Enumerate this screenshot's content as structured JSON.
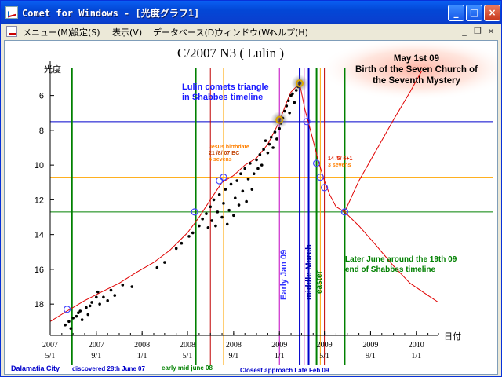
{
  "window": {
    "title": "Comet for Windows - [光度グラフ1]",
    "controls": {
      "minimize": "_",
      "maximize": "□",
      "close": "×"
    }
  },
  "menu": {
    "items": [
      "メニュー(M)",
      "設定(S)",
      "表示(V)",
      "データベース(D)",
      "ウィンドウ(W)",
      "ヘルプ(H)"
    ],
    "mdi_controls": {
      "minimize": "_",
      "restore": "❐",
      "close": "×"
    }
  },
  "chart_data": {
    "type": "scatter",
    "title": "C/2007 N3 ( Lulin )",
    "ylabel": "光度",
    "xlabel": "日付",
    "ylim": [
      19.8,
      4.3
    ],
    "y_ticks": [
      6,
      8,
      10,
      12,
      14,
      16,
      18
    ],
    "x_ticks": [
      {
        "top": "2007",
        "bottom": "5/1"
      },
      {
        "top": "2007",
        "bottom": "9/1"
      },
      {
        "top": "2008",
        "bottom": "1/1"
      },
      {
        "top": "2008",
        "bottom": "5/1"
      },
      {
        "top": "2008",
        "bottom": "9/1"
      },
      {
        "top": "2009",
        "bottom": "1/1"
      },
      {
        "top": "2009",
        "bottom": "5/1"
      },
      {
        "top": "2009",
        "bottom": "9/1"
      },
      {
        "top": "2010",
        "bottom": "1/1"
      }
    ],
    "curve": [
      [
        "2007-05-01",
        19.0
      ],
      [
        "2007-06-15",
        18.4
      ],
      [
        "2007-08-01",
        17.8
      ],
      [
        "2007-09-15",
        17.3
      ],
      [
        "2007-11-01",
        16.8
      ],
      [
        "2007-12-15",
        16.2
      ],
      [
        "2008-02-01",
        15.6
      ],
      [
        "2008-03-15",
        14.9
      ],
      [
        "2008-05-01",
        13.9
      ],
      [
        "2008-06-01",
        13.0
      ],
      [
        "2008-07-01",
        12.0
      ],
      [
        "2008-08-01",
        11.0
      ],
      [
        "2008-09-01",
        10.6
      ],
      [
        "2008-10-01",
        10.0
      ],
      [
        "2008-11-01",
        9.6
      ],
      [
        "2008-12-01",
        8.8
      ],
      [
        "2009-01-01",
        7.5
      ],
      [
        "2009-01-20",
        6.4
      ],
      [
        "2009-02-01",
        5.8
      ],
      [
        "2009-02-24",
        5.3
      ],
      [
        "2009-03-10",
        6.8
      ],
      [
        "2009-03-20",
        7.6
      ],
      [
        "2009-04-01",
        8.6
      ],
      [
        "2009-04-15",
        9.8
      ],
      [
        "2009-05-01",
        10.9
      ],
      [
        "2009-05-15",
        11.7
      ],
      [
        "2009-06-01",
        12.4
      ],
      [
        "2009-06-24",
        12.7
      ],
      [
        "2009-08-01",
        13.5
      ],
      [
        "2009-09-15",
        14.6
      ],
      [
        "2009-11-01",
        15.8
      ],
      [
        "2009-12-15",
        16.8
      ],
      [
        "2010-02-01",
        17.5
      ],
      [
        "2010-03-01",
        17.9
      ]
    ],
    "upper_curve": [
      [
        "2009-06-24",
        12.7
      ],
      [
        "2009-08-01",
        10.9
      ],
      [
        "2009-09-15",
        9.2
      ],
      [
        "2009-11-01",
        7.4
      ],
      [
        "2009-12-15",
        5.8
      ],
      [
        "2010-01-15",
        4.6
      ]
    ],
    "observations": [
      [
        "2007-06-10",
        19.2
      ],
      [
        "2007-06-20",
        19.0
      ],
      [
        "2007-07-01",
        18.8
      ],
      [
        "2007-07-10",
        18.7
      ],
      [
        "2007-07-20",
        18.4
      ],
      [
        "2007-07-25",
        18.9
      ],
      [
        "2007-08-05",
        18.2
      ],
      [
        "2007-08-10",
        18.6
      ],
      [
        "2007-08-20",
        17.9
      ],
      [
        "2007-09-01",
        17.6
      ],
      [
        "2007-09-10",
        18.0
      ],
      [
        "2007-09-20",
        17.6
      ],
      [
        "2007-10-01",
        17.8
      ],
      [
        "2007-10-10",
        17.2
      ],
      [
        "2007-10-20",
        17.5
      ],
      [
        "2007-06-25",
        19.4
      ],
      [
        "2007-07-15",
        18.5
      ],
      [
        "2007-08-15",
        18.1
      ],
      [
        "2007-09-05",
        17.3
      ],
      [
        "2007-11-10",
        16.9
      ],
      [
        "2007-12-05",
        17.0
      ],
      [
        "2008-02-10",
        15.9
      ],
      [
        "2008-03-01",
        15.6
      ],
      [
        "2008-04-01",
        14.8
      ],
      [
        "2008-04-15",
        14.5
      ],
      [
        "2008-05-05",
        14.1
      ],
      [
        "2008-05-15",
        13.9
      ],
      [
        "2008-06-01",
        13.5
      ],
      [
        "2008-06-10",
        13.1
      ],
      [
        "2008-06-20",
        12.8
      ],
      [
        "2008-06-25",
        13.6
      ],
      [
        "2008-07-01",
        12.4
      ],
      [
        "2008-07-05",
        13.2
      ],
      [
        "2008-07-10",
        12.0
      ],
      [
        "2008-07-15",
        13.5
      ],
      [
        "2008-07-20",
        12.7
      ],
      [
        "2008-07-25",
        11.7
      ],
      [
        "2008-08-01",
        13.0
      ],
      [
        "2008-08-05",
        12.2
      ],
      [
        "2008-08-10",
        11.4
      ],
      [
        "2008-08-15",
        13.4
      ],
      [
        "2008-08-20",
        12.6
      ],
      [
        "2008-08-25",
        11.1
      ],
      [
        "2008-09-01",
        12.9
      ],
      [
        "2008-09-05",
        11.9
      ],
      [
        "2008-09-10",
        10.9
      ],
      [
        "2008-09-15",
        12.3
      ],
      [
        "2008-09-20",
        10.5
      ],
      [
        "2008-09-25",
        11.5
      ],
      [
        "2008-10-01",
        10.2
      ],
      [
        "2008-10-05",
        12.1
      ],
      [
        "2008-10-10",
        10.8
      ],
      [
        "2008-10-15",
        9.9
      ],
      [
        "2008-10-20",
        11.4
      ],
      [
        "2008-10-25",
        10.5
      ],
      [
        "2008-11-01",
        9.7
      ],
      [
        "2008-11-05",
        10.2
      ],
      [
        "2008-11-10",
        9.4
      ],
      [
        "2008-11-15",
        10.0
      ],
      [
        "2008-11-20",
        9.1
      ],
      [
        "2008-11-25",
        8.6
      ],
      [
        "2008-12-01",
        9.3
      ],
      [
        "2008-12-05",
        8.8
      ],
      [
        "2008-12-10",
        8.4
      ],
      [
        "2008-12-15",
        9.0
      ],
      [
        "2008-12-20",
        8.1
      ],
      [
        "2008-12-25",
        8.5
      ],
      [
        "2009-01-01",
        7.9
      ],
      [
        "2009-01-05",
        7.6
      ],
      [
        "2009-01-10",
        7.3
      ],
      [
        "2009-01-15",
        6.9
      ],
      [
        "2009-01-20",
        6.6
      ],
      [
        "2009-01-25",
        6.3
      ],
      [
        "2009-01-28",
        7.0
      ],
      [
        "2009-02-01",
        6.0
      ],
      [
        "2009-02-05",
        5.9
      ],
      [
        "2009-02-10",
        6.4
      ],
      [
        "2009-02-15",
        5.7
      ],
      [
        "2009-02-20",
        5.5
      ],
      [
        "2009-02-24",
        5.3
      ]
    ],
    "circled_points": [
      [
        "2007-06-15",
        18.3
      ],
      [
        "2008-05-20",
        12.7
      ],
      [
        "2008-07-25",
        10.9
      ],
      [
        "2008-08-05",
        10.7
      ],
      [
        "2009-01-01",
        7.4
      ],
      [
        "2009-02-24",
        5.3
      ],
      [
        "2009-03-15",
        7.5
      ],
      [
        "2009-04-10",
        9.9
      ],
      [
        "2009-04-20",
        10.7
      ],
      [
        "2009-05-01",
        11.3
      ],
      [
        "2009-06-24",
        12.7
      ]
    ],
    "highlight_points": [
      [
        "2009-01-01",
        7.4
      ],
      [
        "2009-02-24",
        5.3
      ]
    ],
    "vertical_lines": [
      {
        "x": "2007-06-28",
        "color": "#008000"
      },
      {
        "x": "2008-05-23",
        "color": "#008000"
      },
      {
        "x": "2008-07-01",
        "color": "#c00000"
      },
      {
        "x": "2008-08-05",
        "color": "#ffa500"
      },
      {
        "x": "2009-01-01",
        "color": "#c000c0"
      },
      {
        "x": "2009-02-24",
        "color": "#0000cc"
      },
      {
        "x": "2009-03-08",
        "color": "#c000c0"
      },
      {
        "x": "2009-03-20",
        "color": "#0000cc"
      },
      {
        "x": "2009-04-10",
        "color": "#008000"
      },
      {
        "x": "2009-04-20",
        "color": "#ffa500"
      },
      {
        "x": "2009-05-01",
        "color": "#c00000"
      },
      {
        "x": "2009-06-24",
        "color": "#008000"
      }
    ],
    "horizontal_lines": [
      {
        "y": 7.5,
        "color": "#0000cc"
      },
      {
        "y": 10.7,
        "color": "#ffa500"
      },
      {
        "y": 12.7,
        "color": "#008000"
      }
    ],
    "annotations": {
      "birth_1": "May 1st 09",
      "birth_2": "Birth of the Seven Church of",
      "birth_3": "the Seventh Mystery",
      "triangle_1": "Lulin comets triangle",
      "triangle_2": "in Shabbes timeline",
      "jesus_1": "Jesus birthdate",
      "jesus_2": "21 /8/ 07 BC",
      "jesus_3": "4 sevens",
      "date_1": "14 /5/ 6+1",
      "date_2": "3 sevens",
      "early_jan": "Early Jan 09",
      "mid_march": "middle March",
      "easter": "easter",
      "later_june_1": "Later June around the 19th 09",
      "later_june_2": "end of Shabbes timeline",
      "dalamatia": "Dalamatia City",
      "discovered": "discovered 28th June 07",
      "early_mid_june": "early mid june 08",
      "closest": "Closest approach Late Feb 09"
    }
  }
}
